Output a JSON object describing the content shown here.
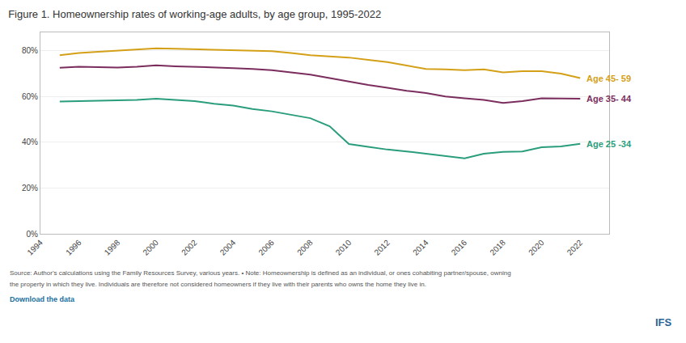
{
  "chart_data": {
    "type": "line",
    "title": "Figure 1. Homeownership rates of working-age adults, by age group, 1995-2022",
    "x": [
      1995,
      1996,
      1997,
      1998,
      1999,
      2000,
      2001,
      2002,
      2003,
      2004,
      2005,
      2006,
      2007,
      2008,
      2009,
      2010,
      2011,
      2012,
      2013,
      2014,
      2015,
      2016,
      2017,
      2018,
      2019,
      2020,
      2021,
      2022
    ],
    "series": [
      {
        "name": "Age 45- 59",
        "color": "#d4a017",
        "values": [
          0.78,
          0.79,
          0.795,
          0.8,
          0.805,
          0.81,
          0.808,
          0.806,
          0.802,
          0.8,
          0.8,
          0.798,
          0.79,
          0.78,
          0.775,
          0.77,
          0.76,
          0.75,
          0.735,
          0.72,
          0.718,
          0.715,
          0.718,
          0.705,
          0.71,
          0.71,
          0.7,
          0.68
        ]
      },
      {
        "name": "Age 35- 44",
        "color": "#7b2d5e",
        "values": [
          0.725,
          0.73,
          0.728,
          0.726,
          0.73,
          0.736,
          0.732,
          0.73,
          0.728,
          0.724,
          0.72,
          0.715,
          0.705,
          0.695,
          0.68,
          0.665,
          0.65,
          0.638,
          0.625,
          0.615,
          0.6,
          0.592,
          0.585,
          0.572,
          0.58,
          0.592,
          0.59,
          0.59
        ]
      },
      {
        "name": "Age 25 -34",
        "color": "#2a9d7c",
        "values": [
          0.578,
          0.58,
          0.582,
          0.582,
          0.585,
          0.59,
          0.585,
          0.58,
          0.568,
          0.56,
          0.545,
          0.535,
          0.52,
          0.505,
          0.47,
          0.392,
          0.38,
          0.368,
          0.36,
          0.35,
          0.338,
          0.33,
          0.35,
          0.358,
          0.36,
          0.378,
          0.382,
          0.393
        ]
      }
    ],
    "xlim": [
      1994,
      2023.5
    ],
    "xticks": [
      1994,
      1996,
      1998,
      2000,
      2002,
      2004,
      2006,
      2008,
      2010,
      2012,
      2014,
      2016,
      2018,
      2020,
      2022
    ],
    "ylim": [
      0.0,
      0.88
    ],
    "yticks": [
      {
        "value": 0.0,
        "label": "0%"
      },
      {
        "value": 0.2,
        "label": "20%"
      },
      {
        "value": 0.4,
        "label": "40%"
      },
      {
        "value": 0.6,
        "label": "60%"
      },
      {
        "value": 0.8,
        "label": "80%"
      }
    ],
    "grid": true,
    "annotations": [
      "Source: Author's calculations using the Family Resources Survey, various years. • Note: Homeownership is defined as an individual, or ones cohabiting partner/spouse, owning",
      "the property in which they live. Individuals are therefore not considered homeowners if they live with their parents who owns the home they live in.",
      "Download the data",
      "IFS"
    ]
  }
}
